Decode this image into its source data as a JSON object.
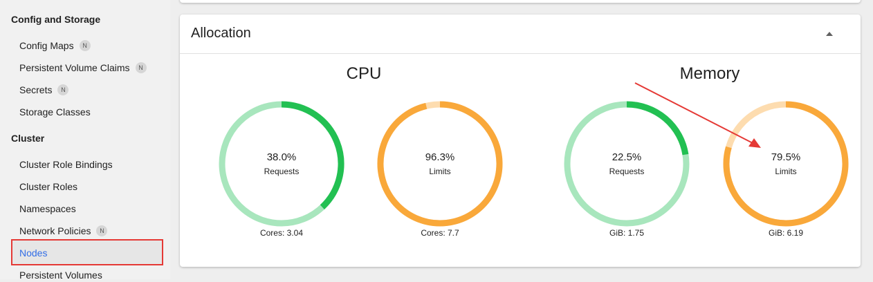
{
  "sidebar": {
    "config_section": "Config and Storage",
    "config_items": [
      {
        "label": "Config Maps",
        "badge": "N"
      },
      {
        "label": "Persistent Volume Claims",
        "badge": "N"
      },
      {
        "label": "Secrets",
        "badge": "N"
      },
      {
        "label": "Storage Classes"
      }
    ],
    "cluster_section": "Cluster",
    "cluster_items": [
      {
        "label": "Cluster Role Bindings"
      },
      {
        "label": "Cluster Roles"
      },
      {
        "label": "Namespaces"
      },
      {
        "label": "Network Policies",
        "badge": "N"
      },
      {
        "label": "Nodes",
        "active": true
      },
      {
        "label": "Persistent Volumes"
      }
    ]
  },
  "allocation": {
    "title": "Allocation",
    "collapse_icon": "arrow-drop-up-icon",
    "cpu": {
      "title": "CPU",
      "requests": {
        "value": "38.0%",
        "label": "Requests",
        "fraction": 0.38,
        "footer": "Cores: 3.04"
      },
      "limits": {
        "value": "96.3%",
        "label": "Limits",
        "fraction": 0.963,
        "footer": "Cores: 7.7"
      }
    },
    "memory": {
      "title": "Memory",
      "requests": {
        "value": "22.5%",
        "label": "Requests",
        "fraction": 0.225,
        "footer": "GiB: 1.75"
      },
      "limits": {
        "value": "79.5%",
        "label": "Limits",
        "fraction": 0.795,
        "footer": "GiB: 6.19"
      }
    }
  },
  "colors": {
    "requests_fill": "#22c052",
    "requests_track": "#a8e6bd",
    "limits_fill": "#f9a83a",
    "limits_track": "#fddcaf",
    "active_nav": "#326de6",
    "annotation": "#e53935"
  }
}
